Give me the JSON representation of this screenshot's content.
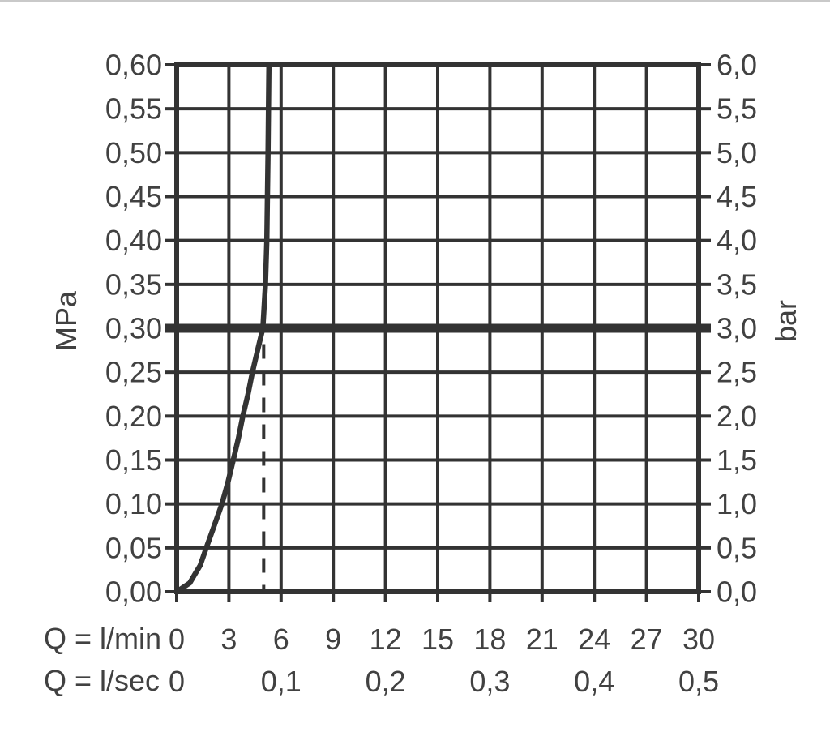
{
  "chart_data": {
    "type": "line",
    "title": "",
    "grid": true,
    "legend": "none",
    "colors": {
      "line": "#333333",
      "text": "#414141",
      "background": "#ffffff",
      "artifact": "#c9c9c9"
    },
    "x_axis": {
      "range": [
        0,
        30
      ],
      "gridline_step_lmin": 3,
      "rows": [
        {
          "label": "Q = l/min",
          "ticks": [
            {
              "value": 0,
              "label": "0"
            },
            {
              "value": 3,
              "label": "3"
            },
            {
              "value": 6,
              "label": "6"
            },
            {
              "value": 9,
              "label": "9"
            },
            {
              "value": 12,
              "label": "12"
            },
            {
              "value": 15,
              "label": "15"
            },
            {
              "value": 18,
              "label": "18"
            },
            {
              "value": 21,
              "label": "21"
            },
            {
              "value": 24,
              "label": "24"
            },
            {
              "value": 27,
              "label": "27"
            },
            {
              "value": 30,
              "label": "30"
            }
          ]
        },
        {
          "label": "Q = l/sec",
          "ticks": [
            {
              "value": 0,
              "label": "0"
            },
            {
              "value": 6,
              "label": "0,1"
            },
            {
              "value": 12,
              "label": "0,2"
            },
            {
              "value": 18,
              "label": "0,3"
            },
            {
              "value": 24,
              "label": "0,4"
            },
            {
              "value": 30,
              "label": "0,5"
            }
          ]
        }
      ]
    },
    "y_axis_left": {
      "label": "MPa",
      "range": [
        0,
        0.6
      ],
      "ticks": [
        {
          "value": 0.6,
          "label": "0,60"
        },
        {
          "value": 0.55,
          "label": "0,55"
        },
        {
          "value": 0.5,
          "label": "0,50"
        },
        {
          "value": 0.45,
          "label": "0,45"
        },
        {
          "value": 0.4,
          "label": "0,40"
        },
        {
          "value": 0.35,
          "label": "0,35"
        },
        {
          "value": 0.3,
          "label": "0,30"
        },
        {
          "value": 0.25,
          "label": "0,25"
        },
        {
          "value": 0.2,
          "label": "0,20"
        },
        {
          "value": 0.15,
          "label": "0,15"
        },
        {
          "value": 0.1,
          "label": "0,10"
        },
        {
          "value": 0.05,
          "label": "0,05"
        },
        {
          "value": 0.0,
          "label": "0,00"
        }
      ]
    },
    "y_axis_right": {
      "label": "bar",
      "range": [
        0,
        6
      ],
      "ticks": [
        {
          "value": 6.0,
          "label": "6,0"
        },
        {
          "value": 5.5,
          "label": "5,5"
        },
        {
          "value": 5.0,
          "label": "5,0"
        },
        {
          "value": 4.5,
          "label": "4,5"
        },
        {
          "value": 4.0,
          "label": "4,0"
        },
        {
          "value": 3.5,
          "label": "3,5"
        },
        {
          "value": 3.0,
          "label": "3,0"
        },
        {
          "value": 2.5,
          "label": "2,5"
        },
        {
          "value": 2.0,
          "label": "2,0"
        },
        {
          "value": 1.5,
          "label": "1,5"
        },
        {
          "value": 1.0,
          "label": "1,0"
        },
        {
          "value": 0.5,
          "label": "0,5"
        },
        {
          "value": 0.0,
          "label": "0,0"
        }
      ]
    },
    "series": [
      {
        "name": "flow-curve",
        "type": "curve",
        "points_lmin_mpa": [
          [
            0,
            0
          ],
          [
            0.75,
            0.01
          ],
          [
            1.05,
            0.02
          ],
          [
            1.35,
            0.03
          ],
          [
            1.7,
            0.05
          ],
          [
            2.15,
            0.075
          ],
          [
            2.6,
            0.1
          ],
          [
            2.95,
            0.125
          ],
          [
            3.25,
            0.15
          ],
          [
            3.55,
            0.175
          ],
          [
            3.8,
            0.2
          ],
          [
            4.1,
            0.225
          ],
          [
            4.35,
            0.25
          ],
          [
            4.65,
            0.275
          ],
          [
            4.95,
            0.3
          ],
          [
            5.1,
            0.35
          ],
          [
            5.18,
            0.4
          ],
          [
            5.25,
            0.5
          ],
          [
            5.3,
            0.6
          ]
        ]
      },
      {
        "name": "reference-pressure-line",
        "type": "hline",
        "value_mpa": 0.3,
        "value_bar": 3.0
      },
      {
        "name": "flow-marker-dashed-line",
        "type": "vline-dashed",
        "value_lmin": 5.0,
        "from_mpa": 0.0,
        "to_mpa": 0.282
      }
    ]
  }
}
